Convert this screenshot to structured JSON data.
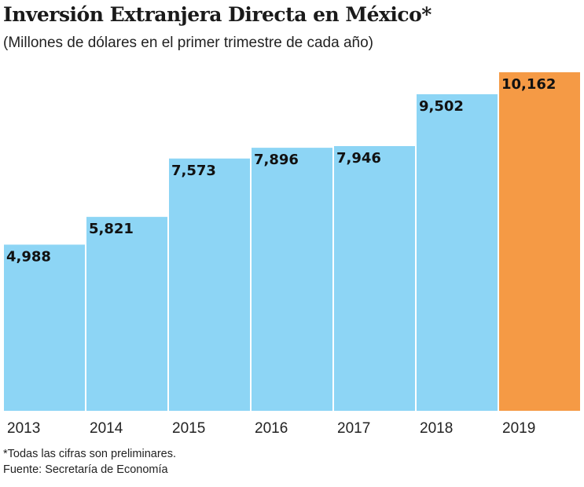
{
  "chart_data": {
    "type": "bar",
    "title": "Inversión Extranjera Directa en México*",
    "subtitle": "(Millones de dólares en el primer trimestre de cada año)",
    "xlabel": "",
    "ylabel": "",
    "categories": [
      "2013",
      "2014",
      "2015",
      "2016",
      "2017",
      "2018",
      "2019"
    ],
    "values": [
      4988,
      5821,
      7573,
      7896,
      7946,
      9502,
      10162
    ],
    "value_labels": [
      "4,988",
      "5,821",
      "7,573",
      "7,896",
      "7,946",
      "9,502",
      "10,162"
    ],
    "ylim": [
      0,
      10162
    ],
    "grid": false,
    "colors": {
      "default": "#8dd5f5",
      "highlight": "#f59a45",
      "highlight_category": "2019"
    }
  },
  "footnotes": {
    "note": "*Todas las cifras son preliminares.",
    "source": "Fuente: Secretaría de Economía"
  }
}
